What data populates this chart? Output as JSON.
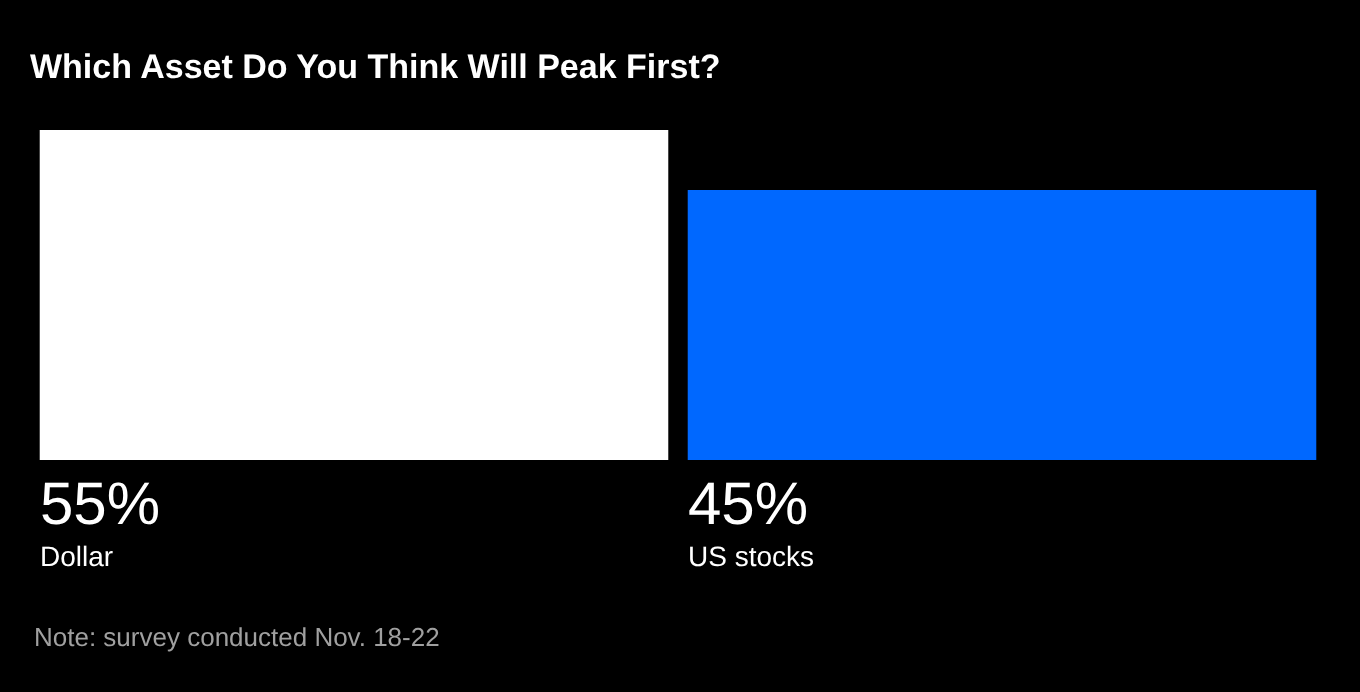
{
  "chart_data": {
    "type": "bar",
    "title": "Which Asset Do You Think Will Peak First?",
    "categories": [
      "Dollar",
      "US stocks"
    ],
    "values": [
      55,
      45
    ],
    "colors": [
      "#ffffff",
      "#0068ff"
    ],
    "value_labels": [
      "55%",
      "45%"
    ],
    "ylim": [
      0,
      55
    ],
    "tick_labels": false,
    "grid": false,
    "annotations": [
      "Note: survey conducted Nov. 18-22"
    ]
  }
}
